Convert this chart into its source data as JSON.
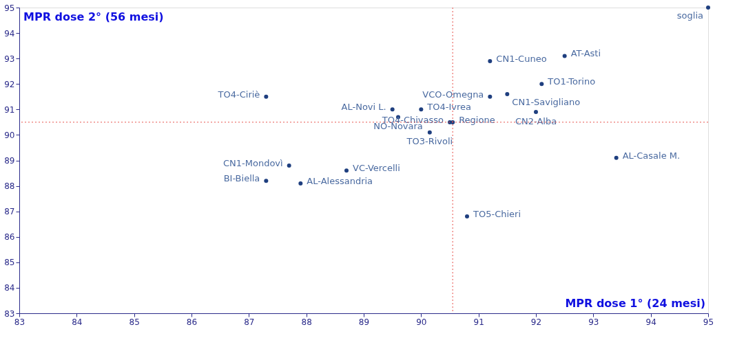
{
  "chart_data": {
    "type": "scatter",
    "xlabel": "MPR dose 1° (24 mesi)",
    "ylabel": "MPR dose 2° (56 mesi)",
    "xlim": [
      83,
      95
    ],
    "ylim": [
      83,
      95
    ],
    "xticks": [
      83,
      84,
      85,
      86,
      87,
      88,
      89,
      90,
      91,
      92,
      93,
      94,
      95
    ],
    "yticks": [
      83,
      84,
      85,
      86,
      87,
      88,
      89,
      90,
      91,
      92,
      93,
      94,
      95
    ],
    "grid": false,
    "legend": false,
    "marker": "circle",
    "series": [
      {
        "name": "soglia",
        "color": "#1f3f7f",
        "x": [
          95
        ],
        "values": [
          95
        ]
      },
      {
        "name": "CN1-Cuneo",
        "color": "#1f3f7f",
        "x": [
          91.2
        ],
        "values": [
          92.9
        ]
      },
      {
        "name": "AT-Asti",
        "color": "#1f3f7f",
        "x": [
          92.5
        ],
        "values": [
          93.1
        ]
      },
      {
        "name": "TO1-Torino",
        "color": "#1f3f7f",
        "x": [
          92.1
        ],
        "values": [
          92.0
        ]
      },
      {
        "name": "VCO-Omegna",
        "color": "#1f3f7f",
        "x": [
          91.2
        ],
        "values": [
          91.5
        ]
      },
      {
        "name": "CN1-Savigliano",
        "color": "#1f3f7f",
        "x": [
          91.5
        ],
        "values": [
          91.6
        ]
      },
      {
        "name": "CN2-Alba",
        "color": "#1f3f7f",
        "x": [
          92.0
        ],
        "values": [
          90.9
        ]
      },
      {
        "name": "TO4-Ciriè",
        "color": "#1f3f7f",
        "x": [
          87.3
        ],
        "values": [
          91.5
        ]
      },
      {
        "name": "AL-Novi L.",
        "color": "#1f3f7f",
        "x": [
          89.5
        ],
        "values": [
          91.0
        ]
      },
      {
        "name": "NO-Novara",
        "color": "#1f3f7f",
        "x": [
          89.6
        ],
        "values": [
          90.7
        ]
      },
      {
        "name": "TO4-Ivrea",
        "color": "#1f3f7f",
        "x": [
          90.0
        ],
        "values": [
          91.0
        ]
      },
      {
        "name": "Regione",
        "color": "#1f3f7f",
        "x": [
          90.55
        ],
        "values": [
          90.5
        ]
      },
      {
        "name": "TO4-Chivasso",
        "color": "#1f3f7f",
        "x": [
          90.5
        ],
        "values": [
          90.5
        ]
      },
      {
        "name": "TO3-Rivoli",
        "color": "#1f3f7f",
        "x": [
          90.15
        ],
        "values": [
          90.1
        ]
      },
      {
        "name": "AL-Casale M.",
        "color": "#1f3f7f",
        "x": [
          93.4
        ],
        "values": [
          89.1
        ]
      },
      {
        "name": "CN1-Mondovì",
        "color": "#1f3f7f",
        "x": [
          87.7
        ],
        "values": [
          88.8
        ]
      },
      {
        "name": "VC-Vercelli",
        "color": "#1f3f7f",
        "x": [
          88.7
        ],
        "values": [
          88.6
        ]
      },
      {
        "name": "BI-Biella",
        "color": "#1f3f7f",
        "x": [
          87.3
        ],
        "values": [
          88.2
        ]
      },
      {
        "name": "AL-Alessandria",
        "color": "#1f3f7f",
        "x": [
          87.9
        ],
        "values": [
          88.1
        ]
      },
      {
        "name": "TO5-Chieri",
        "color": "#1f3f7f",
        "x": [
          90.8
        ],
        "values": [
          86.8
        ]
      }
    ],
    "ref_lines": [
      {
        "axis": "x",
        "value": 90.55,
        "label": null,
        "color": "#e8504a",
        "line_style": "dotted"
      },
      {
        "axis": "y",
        "value": 90.5,
        "label": null,
        "color": "#e8504a",
        "line_style": "dotted"
      }
    ]
  }
}
